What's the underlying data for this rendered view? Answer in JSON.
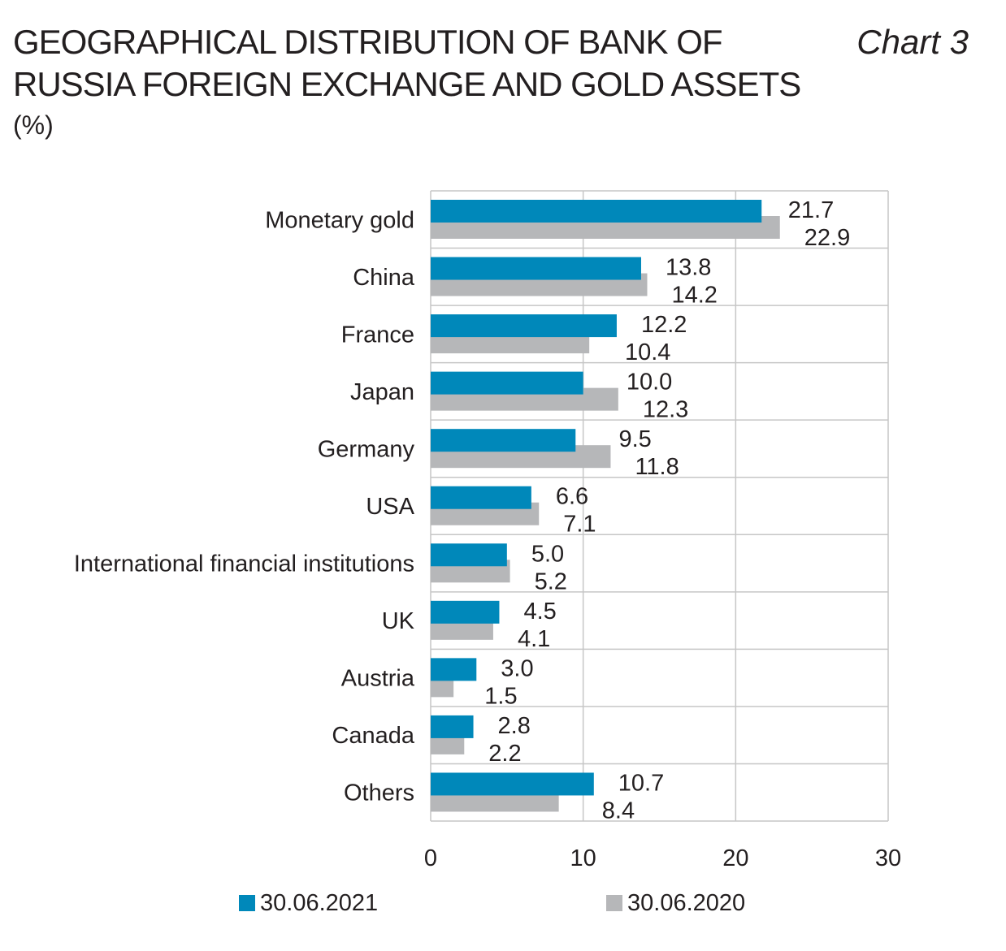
{
  "title": "GEOGRAPHICAL DISTRIBUTION OF BANK OF RUSSIA FOREIGN EXCHANGE AND GOLD ASSETS",
  "chart_number": "Chart 3",
  "unit": "(%)",
  "colors": {
    "series_2021": "#0088ba",
    "series_2020": "#b6b7b9",
    "grid": "#c6c6c6"
  },
  "chart_data": {
    "type": "bar",
    "orientation": "horizontal",
    "categories": [
      "Monetary gold",
      "China",
      "France",
      "Japan",
      "Germany",
      "USA",
      "International financial institutions",
      "UK",
      "Austria",
      "Canada",
      "Others"
    ],
    "series": [
      {
        "name": "30.06.2021",
        "values": [
          21.7,
          13.8,
          12.2,
          10.0,
          9.5,
          6.6,
          5.0,
          4.5,
          3.0,
          2.8,
          10.7
        ]
      },
      {
        "name": "30.06.2020",
        "values": [
          22.9,
          14.2,
          10.4,
          12.3,
          11.8,
          7.1,
          5.2,
          4.1,
          1.5,
          2.2,
          8.4
        ]
      }
    ],
    "value_labels": [
      [
        "21.7",
        "13.8",
        "12.2",
        "10.0",
        "9.5",
        "6.6",
        "5.0",
        "4.5",
        "3.0",
        "2.8",
        "10.7"
      ],
      [
        "22.9",
        "14.2",
        "10.4",
        "12.3",
        "11.8",
        "7.1",
        "5.2",
        "4.1",
        "1.5",
        "2.2",
        "8.4"
      ]
    ],
    "xlim": [
      0,
      30
    ],
    "x_ticks": [
      0,
      10,
      20,
      30
    ],
    "x_tick_labels": [
      "0",
      "10",
      "20",
      "30"
    ],
    "grid": true,
    "legend_position": "bottom"
  }
}
